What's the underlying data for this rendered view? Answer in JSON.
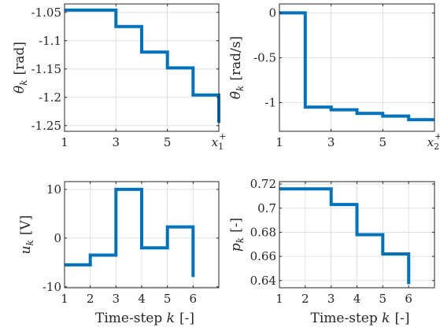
{
  "colors": {
    "series": "#0072BD"
  },
  "chart_data": [
    {
      "type": "line",
      "step": true,
      "ylabel_main": "θ",
      "ylabel_sub": "k",
      "ylabel_unit": "[rad]",
      "xlabel": "",
      "xlim": [
        1,
        7
      ],
      "ylim": [
        -1.26,
        -1.035
      ],
      "xticks": [
        1,
        3,
        5,
        7
      ],
      "xtick_labels": [
        "1",
        "3",
        "5",
        "x₁⁺"
      ],
      "yticks": [
        -1.05,
        -1.1,
        -1.15,
        -1.2,
        -1.25
      ],
      "ytick_labels": [
        "-1.05",
        "-1.1",
        "-1.15",
        "-1.2",
        "-1.25"
      ],
      "x": [
        1,
        3,
        3,
        4,
        4,
        5,
        5,
        6,
        6,
        7,
        7
      ],
      "y": [
        -1.046,
        -1.046,
        -1.075,
        -1.075,
        -1.12,
        -1.12,
        -1.148,
        -1.148,
        -1.196,
        -1.196,
        -1.245
      ],
      "grid": true
    },
    {
      "type": "line",
      "step": true,
      "ylabel_main": "θ̇",
      "ylabel_sub": "k",
      "ylabel_unit": "[rad/s]",
      "xlabel": "",
      "xlim": [
        1,
        7
      ],
      "ylim": [
        -1.32,
        0.1
      ],
      "xticks": [
        1,
        3,
        5,
        7
      ],
      "xtick_labels": [
        "1",
        "3",
        "5",
        "x₂⁺"
      ],
      "yticks": [
        0,
        -0.5,
        -1
      ],
      "ytick_labels": [
        "0",
        "-0.5",
        "-1"
      ],
      "x": [
        1,
        2,
        2,
        3,
        3,
        4,
        4,
        5,
        5,
        6,
        6,
        7
      ],
      "y": [
        0,
        0,
        -1.05,
        -1.05,
        -1.08,
        -1.08,
        -1.12,
        -1.12,
        -1.15,
        -1.15,
        -1.19,
        -1.19
      ],
      "grid": true
    },
    {
      "type": "line",
      "step": true,
      "ylabel_main": "u",
      "ylabel_sub": "k",
      "ylabel_unit": "[V]",
      "xlabel": "Time-step",
      "xlabel_var": "k",
      "xlabel_unit": "[-]",
      "xlim": [
        1,
        7
      ],
      "ylim": [
        -10.2,
        11.6
      ],
      "xticks": [
        1,
        2,
        3,
        4,
        5,
        6
      ],
      "xtick_labels": [
        "1",
        "2",
        "3",
        "4",
        "5",
        "6"
      ],
      "yticks": [
        10,
        0,
        -10
      ],
      "ytick_labels": [
        "10",
        "0",
        "-10"
      ],
      "x": [
        1,
        2,
        2,
        3,
        3,
        4,
        4,
        5,
        5,
        6,
        6
      ],
      "y": [
        -5.5,
        -5.5,
        -3.5,
        -3.5,
        10,
        10,
        -2,
        -2,
        2.3,
        2.3,
        -8
      ],
      "grid": true
    },
    {
      "type": "line",
      "step": true,
      "ylabel_main": "p",
      "ylabel_sub": "k",
      "ylabel_unit": "[-]",
      "xlabel": "Time-step",
      "xlabel_var": "k",
      "xlabel_unit": "[-]",
      "xlim": [
        1,
        7
      ],
      "ylim": [
        0.634,
        0.722
      ],
      "xticks": [
        1,
        2,
        3,
        4,
        5,
        6
      ],
      "xtick_labels": [
        "1",
        "2",
        "3",
        "4",
        "5",
        "6"
      ],
      "yticks": [
        0.72,
        0.7,
        0.68,
        0.66,
        0.64
      ],
      "ytick_labels": [
        "0.72",
        "0.7",
        "0.68",
        "0.66",
        "0.64"
      ],
      "x": [
        1,
        3,
        3,
        4,
        4,
        5,
        5,
        6,
        6
      ],
      "y": [
        0.716,
        0.716,
        0.703,
        0.703,
        0.678,
        0.678,
        0.662,
        0.662,
        0.637
      ],
      "grid": true
    }
  ]
}
